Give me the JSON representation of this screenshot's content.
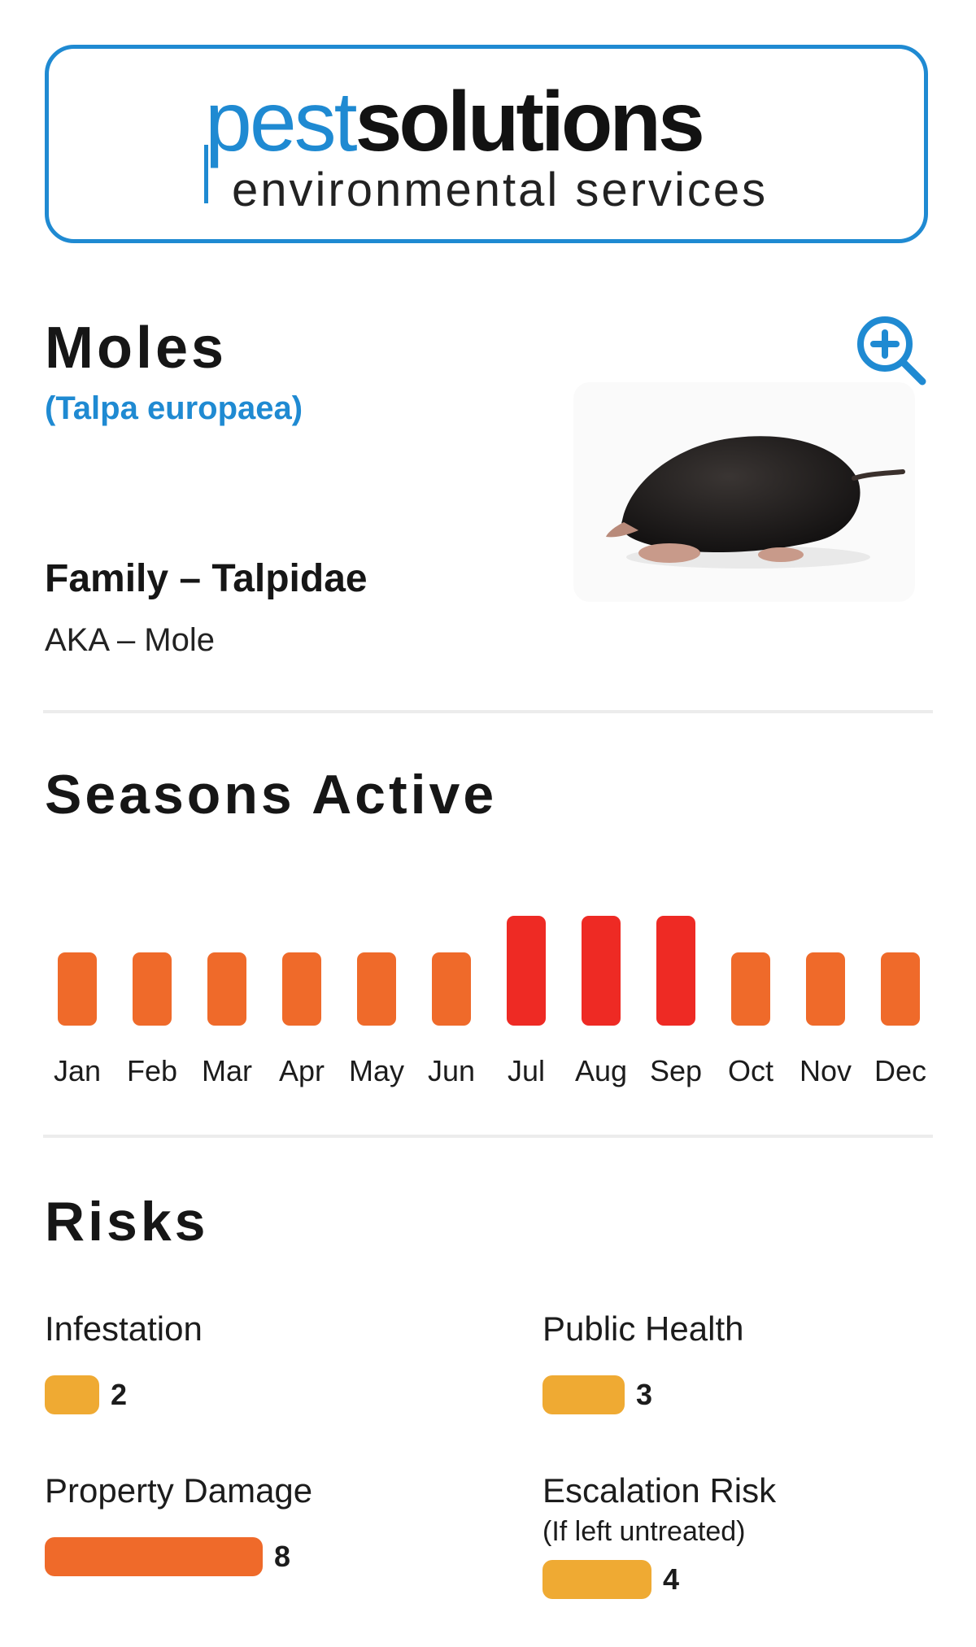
{
  "logo": {
    "word_blue": "pest",
    "word_dark": "solutions",
    "tagline": "environmental services",
    "color_blue": "#1f8ad2"
  },
  "pest": {
    "name": "Moles",
    "scientific_name": "(Talpa europaea)",
    "family": "Family – Talpidae",
    "aka": "AKA – Mole",
    "zoom_icon": "zoom-in-icon",
    "image": "mole-photo"
  },
  "seasons": {
    "heading": "Seasons Active",
    "chart_data": {
      "type": "bar",
      "categories": [
        "Jan",
        "Feb",
        "Mar",
        "Apr",
        "May",
        "Jun",
        "Jul",
        "Aug",
        "Sep",
        "Oct",
        "Nov",
        "Dec"
      ],
      "values": [
        2,
        2,
        2,
        2,
        2,
        2,
        3,
        3,
        3,
        2,
        2,
        2
      ],
      "colors": {
        "2": "#ef6a2a",
        "3": "#ee2a24"
      },
      "ylim": [
        0,
        3
      ],
      "grid": false
    }
  },
  "risks": {
    "heading": "Risks",
    "max": 10,
    "items": [
      {
        "label": "Infestation",
        "sublabel": "",
        "value": 2,
        "color": "#efaa33"
      },
      {
        "label": "Public Health",
        "sublabel": "",
        "value": 3,
        "color": "#efaa33"
      },
      {
        "label": "Property Damage",
        "sublabel": "",
        "value": 8,
        "color": "#ef6a2a"
      },
      {
        "label": "Escalation Risk",
        "sublabel": "(If left untreated)",
        "value": 4,
        "color": "#efaa33"
      }
    ]
  }
}
